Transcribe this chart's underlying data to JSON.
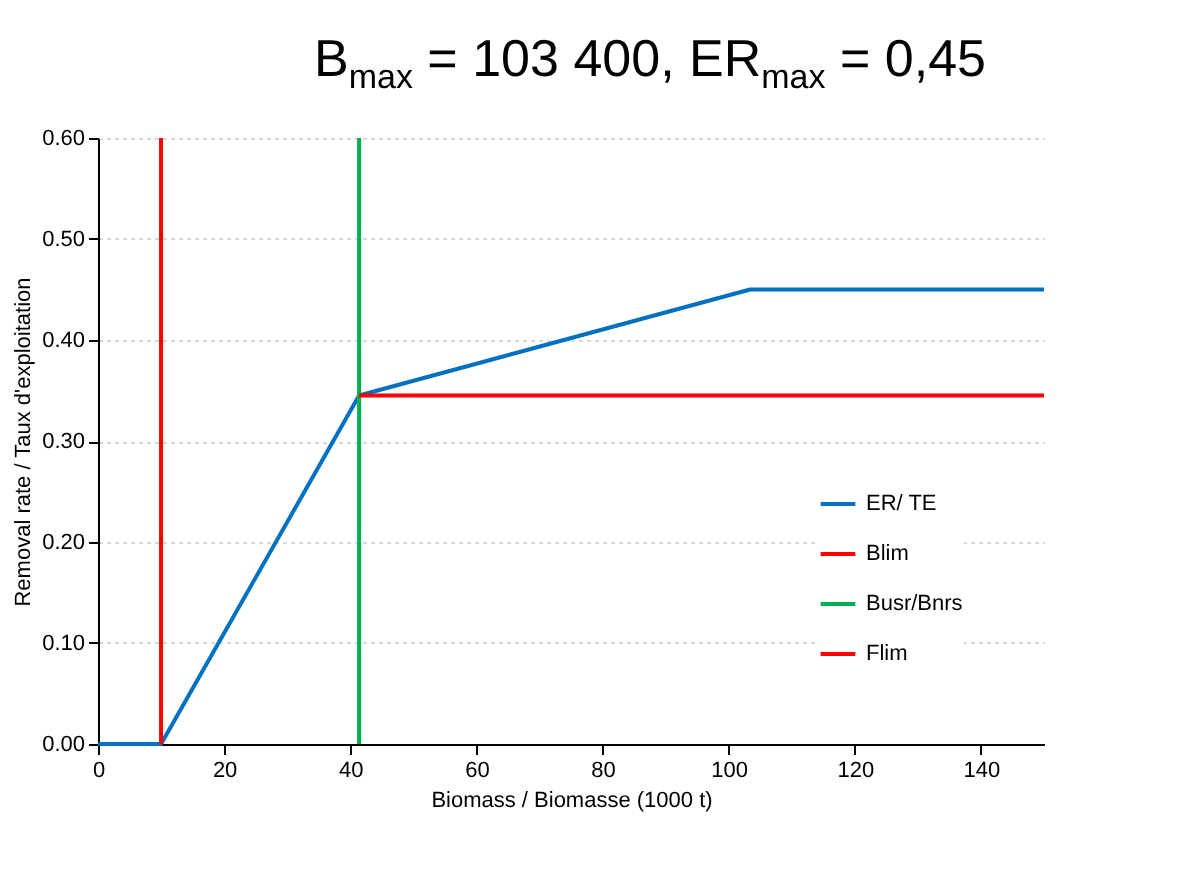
{
  "chart_data": {
    "type": "line",
    "title": "B$_{max}$ = 103 400, ER$_{max}$ = 0,45",
    "xlabel": "Biomass / Biomasse (1000 t)",
    "ylabel": "Removal rate / Taux d'exploitation",
    "xlim": [
      0,
      150
    ],
    "xticks": [
      0,
      20,
      40,
      60,
      80,
      100,
      120,
      140
    ],
    "ylim": [
      0,
      0.6
    ],
    "yticks": [
      {
        "value": 0,
        "label": "0.00"
      },
      {
        "value": 0.1,
        "label": "0.10"
      },
      {
        "value": 0.2,
        "label": "0.20"
      },
      {
        "value": 0.3,
        "label": "0.30"
      },
      {
        "value": 0.4,
        "label": "0.40"
      },
      {
        "value": 0.5,
        "label": "0.50"
      },
      {
        "value": 0.6,
        "label": "0.60"
      }
    ],
    "grid": "y",
    "legend": "bottom right",
    "marker": "none",
    "line_style": "solid",
    "series": [
      {
        "name": "ER/ TE",
        "color": "#0070c0",
        "x": [
          0,
          10,
          41.4,
          103.4,
          150
        ],
        "values": [
          0,
          0,
          0.345,
          0.45,
          0.45
        ]
      },
      {
        "name": "Blim",
        "color": "#ff0000",
        "x": [
          10,
          10
        ],
        "values": [
          0,
          0.6
        ]
      },
      {
        "name": "Busr/Bnrs",
        "color": "#00b050",
        "x": [
          41.4,
          41.4
        ],
        "values": [
          0,
          0.6
        ]
      },
      {
        "name": "Flim",
        "color": "#ff0000",
        "x": [
          41.4,
          150
        ],
        "values": [
          0.345,
          0.345
        ]
      }
    ]
  }
}
